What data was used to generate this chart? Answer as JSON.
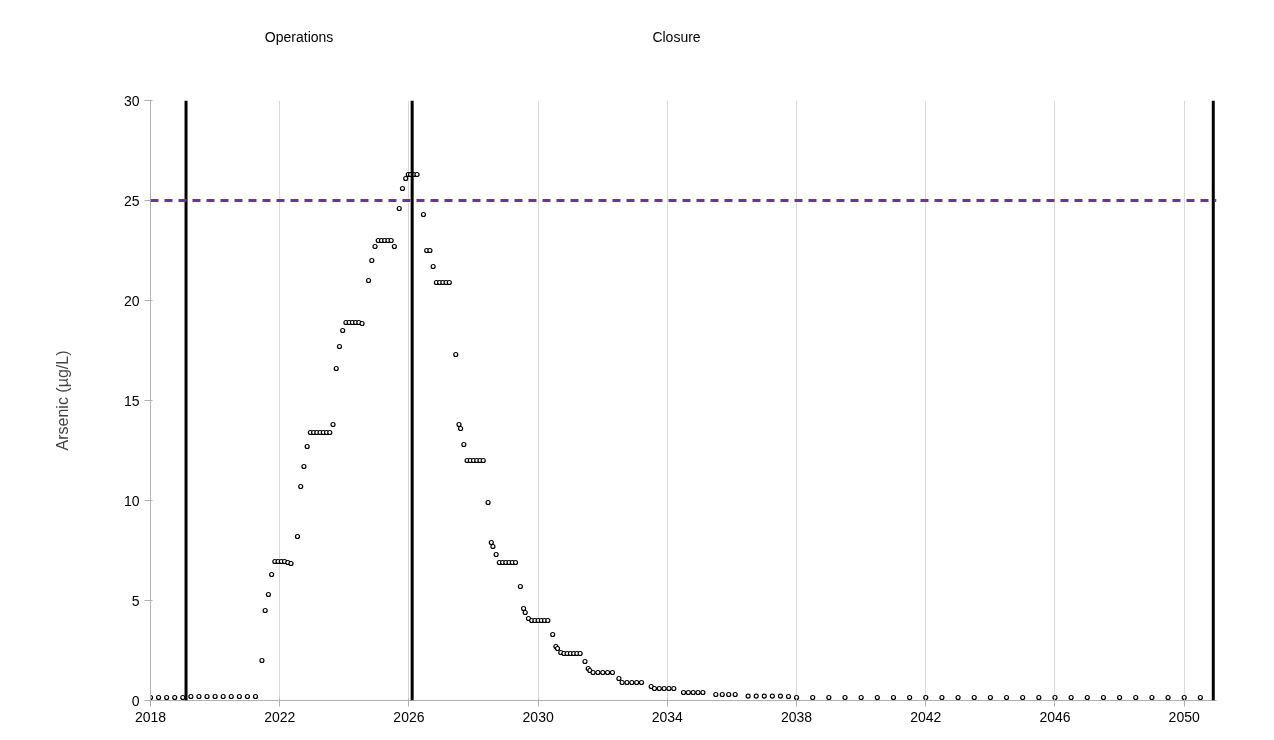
{
  "chart_data": {
    "type": "scatter",
    "ylabel": "Arsenic (µg/L)",
    "annotations": [
      "Operations",
      "Closure"
    ],
    "x": [
      2018.0,
      2018.25,
      2018.5,
      2018.75,
      2019.0,
      2019.25,
      2019.5,
      2019.75,
      2020.0,
      2020.25,
      2020.5,
      2020.75,
      2021.0,
      2021.25,
      2021.45,
      2021.55,
      2021.65,
      2021.75,
      2021.85,
      2021.95,
      2022.05,
      2022.15,
      2022.25,
      2022.35,
      2022.55,
      2022.65,
      2022.75,
      2022.85,
      2022.95,
      2023.05,
      2023.15,
      2023.25,
      2023.35,
      2023.45,
      2023.55,
      2023.65,
      2023.75,
      2023.85,
      2023.95,
      2024.05,
      2024.15,
      2024.25,
      2024.35,
      2024.45,
      2024.55,
      2024.75,
      2024.85,
      2024.95,
      2025.05,
      2025.15,
      2025.25,
      2025.35,
      2025.45,
      2025.55,
      2025.7,
      2025.8,
      2025.9,
      2025.98,
      2026.05,
      2026.15,
      2026.25,
      2026.45,
      2026.55,
      2026.65,
      2026.75,
      2026.85,
      2026.95,
      2027.05,
      2027.15,
      2027.25,
      2027.45,
      2027.55,
      2027.6,
      2027.7,
      2027.8,
      2027.9,
      2028.0,
      2028.1,
      2028.2,
      2028.3,
      2028.45,
      2028.55,
      2028.6,
      2028.7,
      2028.8,
      2028.9,
      2029.0,
      2029.1,
      2029.2,
      2029.3,
      2029.45,
      2029.55,
      2029.6,
      2029.7,
      2029.8,
      2029.9,
      2030.0,
      2030.1,
      2030.2,
      2030.3,
      2030.45,
      2030.55,
      2030.6,
      2030.7,
      2030.8,
      2030.9,
      2031.0,
      2031.1,
      2031.2,
      2031.3,
      2031.45,
      2031.55,
      2031.6,
      2031.7,
      2031.85,
      2032.0,
      2032.15,
      2032.3,
      2032.5,
      2032.6,
      2032.75,
      2032.9,
      2033.05,
      2033.2,
      2033.5,
      2033.6,
      2033.75,
      2033.9,
      2034.05,
      2034.2,
      2034.5,
      2034.65,
      2034.8,
      2034.95,
      2035.1,
      2035.5,
      2035.7,
      2035.9,
      2036.1,
      2036.5,
      2036.75,
      2037.0,
      2037.25,
      2037.5,
      2037.75,
      2038.0,
      2038.5,
      2039.0,
      2039.5,
      2040.0,
      2040.5,
      2041.0,
      2041.5,
      2042.0,
      2042.5,
      2043.0,
      2043.5,
      2044.0,
      2044.5,
      2045.0,
      2045.5,
      2046.0,
      2046.5,
      2047.0,
      2047.5,
      2048.0,
      2048.5,
      2049.0,
      2049.5,
      2050.0,
      2050.5
    ],
    "series": [
      {
        "color": "#000000",
        "values": [
          0.15,
          0.15,
          0.15,
          0.15,
          0.15,
          0.2,
          0.2,
          0.2,
          0.2,
          0.2,
          0.2,
          0.2,
          0.2,
          0.2,
          2.0,
          4.5,
          5.3,
          6.3,
          6.95,
          6.95,
          6.95,
          6.95,
          6.9,
          6.85,
          8.2,
          10.7,
          11.7,
          12.7,
          13.4,
          13.4,
          13.4,
          13.4,
          13.4,
          13.4,
          13.4,
          13.8,
          16.6,
          17.7,
          18.5,
          18.9,
          18.9,
          18.9,
          18.9,
          18.9,
          18.85,
          21.0,
          22.0,
          22.7,
          23.0,
          23.0,
          23.0,
          23.0,
          23.0,
          22.7,
          24.6,
          25.6,
          26.1,
          26.3,
          26.3,
          26.3,
          26.3,
          24.3,
          22.5,
          22.5,
          21.7,
          20.9,
          20.9,
          20.9,
          20.9,
          20.9,
          17.3,
          13.8,
          13.6,
          12.8,
          12.0,
          12.0,
          12.0,
          12.0,
          12.0,
          12.0,
          9.9,
          7.9,
          7.7,
          7.3,
          6.9,
          6.9,
          6.9,
          6.9,
          6.9,
          6.9,
          5.7,
          4.6,
          4.4,
          4.1,
          4.0,
          4.0,
          4.0,
          4.0,
          4.0,
          4.0,
          3.3,
          2.7,
          2.6,
          2.4,
          2.35,
          2.35,
          2.35,
          2.35,
          2.35,
          2.35,
          1.95,
          1.6,
          1.5,
          1.4,
          1.4,
          1.4,
          1.4,
          1.4,
          1.1,
          0.9,
          0.9,
          0.9,
          0.9,
          0.9,
          0.7,
          0.6,
          0.6,
          0.6,
          0.6,
          0.6,
          0.4,
          0.4,
          0.4,
          0.4,
          0.4,
          0.3,
          0.3,
          0.3,
          0.3,
          0.22,
          0.22,
          0.22,
          0.22,
          0.22,
          0.2,
          0.15,
          0.15,
          0.15,
          0.15,
          0.15,
          0.15,
          0.15,
          0.15,
          0.15,
          0.15,
          0.15,
          0.15,
          0.15,
          0.15,
          0.15,
          0.15,
          0.15,
          0.15,
          0.15,
          0.15,
          0.15,
          0.15,
          0.15,
          0.15,
          0.15,
          0.15
        ]
      }
    ],
    "xlim": [
      2018,
      2051
    ],
    "ylim": [
      0,
      30
    ],
    "xticks": [
      2018,
      2022,
      2026,
      2030,
      2034,
      2038,
      2042,
      2046,
      2050
    ],
    "yticks": [
      0,
      5,
      10,
      15,
      20,
      25,
      30
    ],
    "ref_lines": [
      {
        "axis": "x",
        "value": 2019.1,
        "color": "#000000"
      },
      {
        "axis": "x",
        "value": 2026.1,
        "color": "#000000"
      },
      {
        "axis": "x",
        "value": 2050.9,
        "color": "#000000"
      },
      {
        "axis": "y",
        "value": 25,
        "color": "#7030a0",
        "line_style": "dashed"
      }
    ],
    "grid": "x",
    "marker": "circle"
  }
}
